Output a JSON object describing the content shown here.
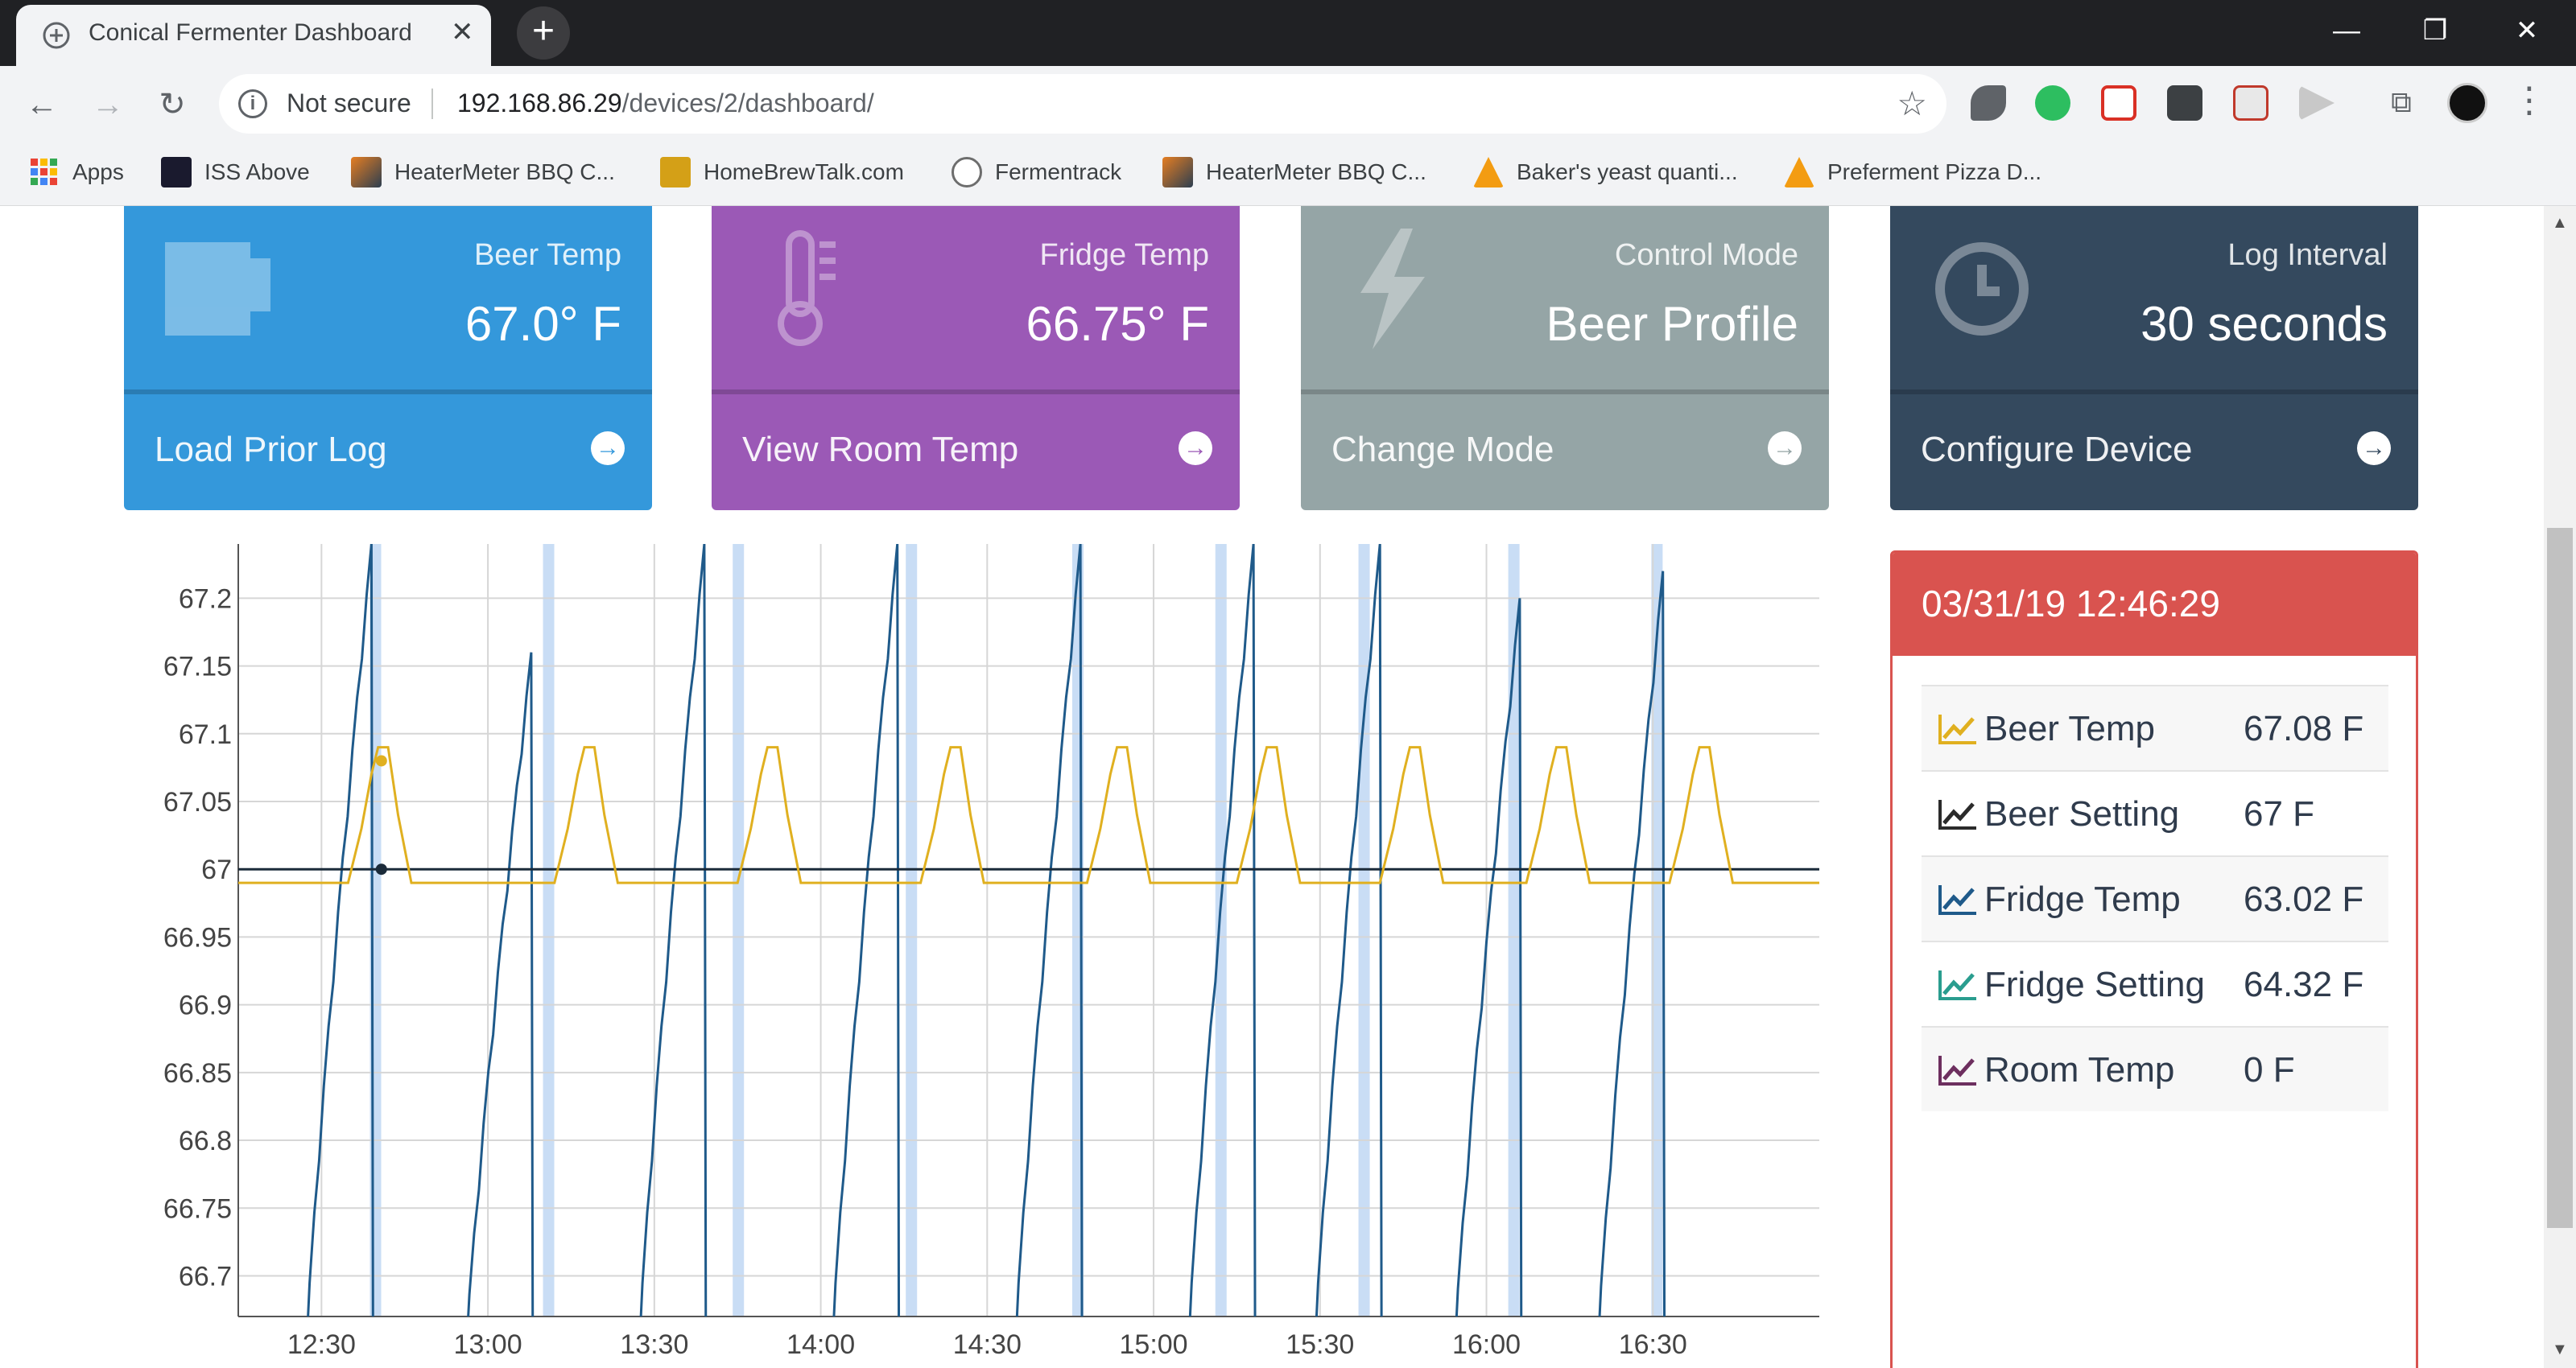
{
  "browser": {
    "tab_title": "Conical Fermenter Dashboard",
    "tab_close": "✕",
    "new_tab": "+",
    "window_controls": {
      "minimize": "—",
      "restore": "❐",
      "close": "✕"
    },
    "security_label": "Not secure",
    "url_host": "192.168.86.29",
    "url_path": "/devices/2/dashboard/",
    "bookmarks": [
      {
        "label": "Apps",
        "icon": "apps-grid-icon"
      },
      {
        "label": "ISS Above",
        "icon": "iss-icon"
      },
      {
        "label": "HeaterMeter BBQ C...",
        "icon": "heatermeter-icon"
      },
      {
        "label": "HomeBrewTalk.com",
        "icon": "homebrewtalk-icon"
      },
      {
        "label": "Fermentrack",
        "icon": "fermentrack-icon"
      },
      {
        "label": "HeaterMeter BBQ C...",
        "icon": "heatermeter-icon"
      },
      {
        "label": "Baker's yeast quanti...",
        "icon": "pizza-icon"
      },
      {
        "label": "Preferment Pizza D...",
        "icon": "pizza-icon"
      }
    ]
  },
  "panels": [
    {
      "label": "Beer Temp",
      "value": "67.0° F",
      "footer": "Load Prior Log",
      "icon": "mug-icon",
      "color": "#3498db"
    },
    {
      "label": "Fridge Temp",
      "value": "66.75° F",
      "footer": "View Room Temp",
      "icon": "thermometer-icon",
      "color": "#9b59b6"
    },
    {
      "label": "Control Mode",
      "value": "Beer Profile",
      "footer": "Change Mode",
      "icon": "lightning-icon",
      "color": "#95a5a6"
    },
    {
      "label": "Log Interval",
      "value": "30 seconds",
      "footer": "Configure Device",
      "icon": "clock-icon",
      "color": "#34495e"
    }
  ],
  "legend": {
    "timestamp": "03/31/19 12:46:29",
    "rows": [
      {
        "name": "Beer Temp",
        "value": "67.08 F",
        "color": "#e0b020"
      },
      {
        "name": "Beer Setting",
        "value": "67 F",
        "color": "#2b2b2b"
      },
      {
        "name": "Fridge Temp",
        "value": "63.02 F",
        "color": "#1f5a8a"
      },
      {
        "name": "Fridge Setting",
        "value": "64.32 F",
        "color": "#2a9d8f"
      },
      {
        "name": "Room Temp",
        "value": "0 F",
        "color": "#6d2f5f"
      }
    ]
  },
  "chart_data": {
    "type": "line",
    "x_ticks": [
      "12:30",
      "13:00",
      "13:30",
      "14:00",
      "14:30",
      "15:00",
      "15:30",
      "16:00",
      "16:30"
    ],
    "y_ticks": [
      "67.2",
      "67.15",
      "67.1",
      "67.05",
      "67",
      "66.95",
      "66.9",
      "66.85",
      "66.8",
      "66.75",
      "66.7"
    ],
    "ylim": [
      66.67,
      67.24
    ],
    "xlim_minutes": [
      12.25,
      17.0
    ],
    "series": [
      {
        "name": "Beer Temp",
        "color": "#e0b020",
        "cycle_starts_hours": [
          12.58,
          13.2,
          13.75,
          14.3,
          14.8,
          15.25,
          15.68,
          16.12,
          16.55
        ],
        "baseline": 66.99,
        "peak": 67.09
      },
      {
        "name": "Beer Setting",
        "color": "#1b2b3a",
        "constant": 67.0
      },
      {
        "name": "Fridge Temp",
        "color": "#1f5a8a",
        "cycle_starts_hours": [
          12.45,
          12.93,
          13.45,
          14.03,
          14.58,
          15.1,
          15.48,
          15.9,
          16.33
        ],
        "cycle_peaks": [
          67.24,
          67.16,
          67.24,
          67.24,
          67.24,
          67.24,
          67.24,
          67.2,
          67.22
        ]
      }
    ],
    "cooling_bands_hours": [
      12.66,
      13.18,
      13.75,
      14.27,
      14.77,
      15.2,
      15.63,
      16.08,
      16.51
    ]
  }
}
